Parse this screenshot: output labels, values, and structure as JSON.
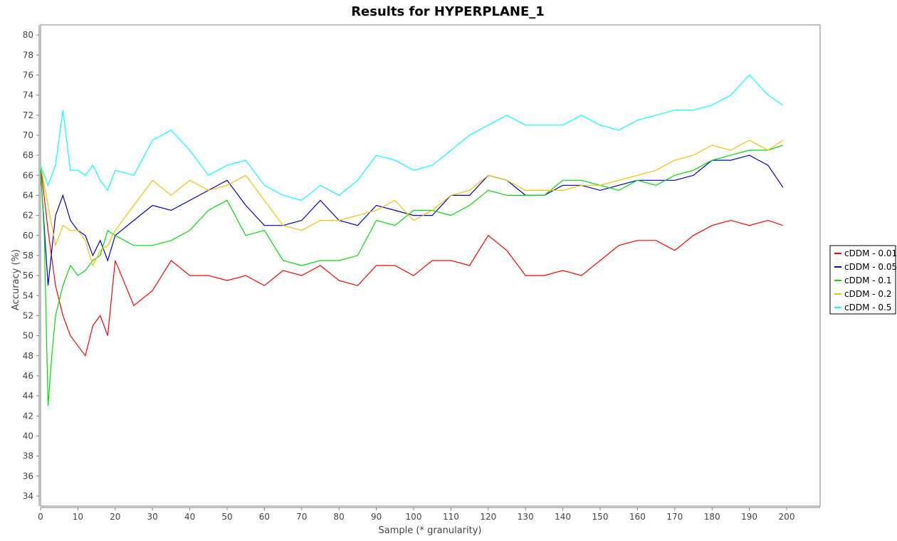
{
  "chart_data": {
    "type": "line",
    "title": "Results for HYPERPLANE_1",
    "xlabel": "Sample (* granularity)",
    "ylabel": "Accuracy (%)",
    "xlim": [
      0,
      200
    ],
    "ylim": [
      33,
      81
    ],
    "x_ticks": [
      0,
      10,
      20,
      30,
      40,
      50,
      60,
      70,
      80,
      90,
      100,
      110,
      120,
      130,
      140,
      150,
      160,
      170,
      180,
      190,
      200
    ],
    "y_ticks": [
      34,
      36,
      38,
      40,
      42,
      44,
      46,
      48,
      50,
      52,
      54,
      56,
      58,
      60,
      62,
      64,
      66,
      68,
      70,
      72,
      74,
      76,
      78,
      80
    ],
    "x_tick_labels": [
      "0",
      "10",
      "20",
      "30",
      "40",
      "50",
      "60",
      "70",
      "80",
      "90",
      "100",
      "110",
      "120",
      "130",
      "140",
      "150",
      "160",
      "170",
      "180",
      "190",
      "200"
    ],
    "y_tick_labels": [
      "34",
      "36",
      "38",
      "40",
      "42",
      "44",
      "46",
      "48",
      "50",
      "52",
      "54",
      "56",
      "58",
      "60",
      "62",
      "64",
      "66",
      "68",
      "70",
      "72",
      "74",
      "76",
      "78",
      "80"
    ],
    "grid": false,
    "legend_position": "right",
    "series": [
      {
        "name": "cDDM - 0.01",
        "color": "#ff0000",
        "x": [
          0,
          2,
          4,
          6,
          8,
          10,
          12,
          14,
          16,
          18,
          20,
          25,
          30,
          35,
          40,
          45,
          50,
          55,
          60,
          65,
          70,
          75,
          80,
          85,
          90,
          95,
          100,
          105,
          110,
          115,
          120,
          125,
          130,
          135,
          140,
          145,
          150,
          155,
          160,
          165,
          170,
          175,
          180,
          185,
          190,
          195,
          199
        ],
        "y": [
          67.0,
          60.5,
          55.0,
          52.0,
          50.0,
          49.0,
          48.0,
          51.0,
          52.0,
          50.0,
          57.5,
          53.0,
          54.5,
          57.5,
          56.0,
          56.0,
          55.5,
          56.0,
          55.0,
          56.5,
          56.0,
          57.0,
          55.5,
          55.0,
          57.0,
          57.0,
          56.0,
          57.5,
          57.5,
          57.0,
          60.0,
          58.5,
          56.0,
          56.0,
          56.5,
          56.0,
          57.5,
          59.0,
          59.5,
          59.5,
          58.5,
          60.0,
          61.0,
          61.5,
          61.0,
          61.5,
          61.0
        ]
      },
      {
        "name": "cDDM - 0.05",
        "color": "#0000cc",
        "x": [
          0,
          2,
          4,
          6,
          8,
          10,
          12,
          14,
          16,
          18,
          20,
          25,
          30,
          35,
          40,
          45,
          50,
          55,
          60,
          65,
          70,
          75,
          80,
          85,
          90,
          95,
          100,
          105,
          110,
          115,
          120,
          125,
          130,
          135,
          140,
          145,
          150,
          155,
          160,
          165,
          170,
          175,
          180,
          185,
          190,
          195,
          199
        ],
        "y": [
          66.5,
          55.0,
          62.0,
          64.0,
          61.5,
          60.5,
          60.0,
          58.0,
          59.5,
          57.5,
          60.0,
          61.5,
          63.0,
          62.5,
          63.5,
          64.5,
          65.5,
          63.0,
          61.0,
          61.0,
          61.5,
          63.5,
          61.5,
          61.0,
          63.0,
          62.5,
          62.0,
          62.0,
          64.0,
          64.0,
          66.0,
          65.5,
          64.0,
          64.0,
          65.0,
          65.0,
          64.5,
          65.0,
          65.5,
          65.5,
          65.5,
          66.0,
          67.5,
          67.5,
          68.0,
          67.0,
          64.8
        ]
      },
      {
        "name": "cDDM - 0.1",
        "color": "#00dd00",
        "x": [
          0,
          1,
          2,
          3,
          4,
          6,
          8,
          10,
          12,
          14,
          16,
          18,
          20,
          25,
          30,
          35,
          40,
          45,
          50,
          55,
          60,
          65,
          70,
          75,
          80,
          85,
          90,
          95,
          100,
          105,
          110,
          115,
          120,
          125,
          130,
          135,
          140,
          145,
          150,
          155,
          160,
          165,
          170,
          175,
          180,
          185,
          190,
          195,
          199
        ],
        "y": [
          67.0,
          60.0,
          43.0,
          48.0,
          52.0,
          55.0,
          57.0,
          56.0,
          56.5,
          57.5,
          58.0,
          60.5,
          60.0,
          59.0,
          59.0,
          59.5,
          60.5,
          62.5,
          63.5,
          60.0,
          60.5,
          57.5,
          57.0,
          57.5,
          57.5,
          58.0,
          61.5,
          61.0,
          62.5,
          62.5,
          62.0,
          63.0,
          64.5,
          64.0,
          64.0,
          64.0,
          65.5,
          65.5,
          65.0,
          64.5,
          65.5,
          65.0,
          66.0,
          66.5,
          67.5,
          68.0,
          68.5,
          68.5,
          69.0
        ]
      },
      {
        "name": "cDDM - 0.2",
        "color": "#eec300",
        "x": [
          0,
          2,
          4,
          6,
          8,
          10,
          12,
          14,
          16,
          18,
          20,
          25,
          30,
          35,
          40,
          45,
          50,
          55,
          60,
          65,
          70,
          75,
          80,
          85,
          90,
          95,
          100,
          105,
          110,
          115,
          120,
          125,
          130,
          135,
          140,
          145,
          150,
          155,
          160,
          165,
          170,
          175,
          180,
          185,
          190,
          195,
          199
        ],
        "y": [
          67.0,
          63.0,
          59.0,
          61.0,
          60.5,
          60.5,
          59.5,
          57.0,
          58.5,
          59.0,
          60.5,
          63.0,
          65.5,
          64.0,
          65.5,
          64.5,
          65.0,
          66.0,
          63.5,
          61.0,
          60.5,
          61.5,
          61.5,
          62.0,
          62.5,
          63.5,
          61.5,
          62.5,
          64.0,
          64.5,
          66.0,
          65.5,
          64.5,
          64.5,
          64.5,
          65.0,
          65.0,
          65.5,
          66.0,
          66.5,
          67.5,
          68.0,
          69.0,
          68.5,
          69.5,
          68.5,
          69.5
        ]
      },
      {
        "name": "cDDM - 0.5",
        "color": "#00ffff",
        "x": [
          0,
          2,
          4,
          6,
          8,
          10,
          12,
          14,
          16,
          18,
          20,
          25,
          30,
          35,
          40,
          45,
          50,
          55,
          60,
          65,
          70,
          75,
          80,
          85,
          90,
          95,
          100,
          105,
          110,
          115,
          120,
          125,
          130,
          135,
          140,
          145,
          150,
          155,
          160,
          165,
          170,
          175,
          180,
          185,
          190,
          195,
          199
        ],
        "y": [
          67.0,
          65.0,
          67.0,
          72.5,
          66.5,
          66.5,
          66.0,
          67.0,
          65.5,
          64.5,
          66.5,
          66.0,
          69.5,
          70.5,
          68.5,
          66.0,
          67.0,
          67.5,
          65.0,
          64.0,
          63.5,
          65.0,
          64.0,
          65.5,
          68.0,
          67.5,
          66.5,
          67.0,
          68.5,
          70.0,
          71.0,
          72.0,
          71.0,
          71.0,
          71.0,
          72.0,
          71.0,
          70.5,
          71.5,
          72.0,
          72.5,
          72.5,
          73.0,
          74.0,
          76.0,
          74.0,
          73.0
        ]
      }
    ]
  }
}
